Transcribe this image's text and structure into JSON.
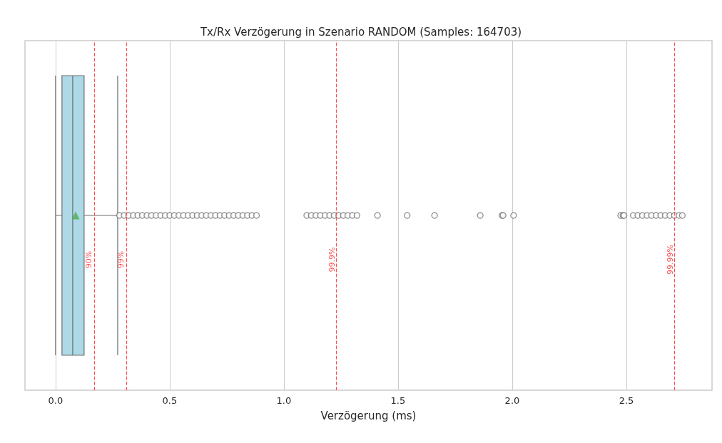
{
  "chart_data": {
    "type": "box",
    "title": "Tx/Rx Verzögerung in Szenario RANDOM (Samples: 164703)",
    "xlabel": "Verzögerung (ms)",
    "orientation": "horizontal",
    "categories": [
      null
    ],
    "xlim": [
      -0.134,
      2.875
    ],
    "xticks": [
      {
        "value": 0,
        "label": "0.0"
      },
      0.5,
      {
        "value": 1,
        "label": "1.0"
      },
      1.5,
      {
        "value": 2,
        "label": "2.0"
      },
      2.5
    ],
    "grid": "x",
    "series": [
      {
        "color": "#add8e6",
        "boxes": [
          {
            "low": 0.0,
            "q1": 0.028,
            "median": 0.075,
            "q3": 0.125,
            "high": 0.272,
            "mean": 0.088,
            "outliers": [
              0.28,
              0.3,
              0.32,
              0.34,
              0.36,
              0.38,
              0.4,
              0.42,
              0.44,
              0.46,
              0.48,
              0.5,
              0.52,
              0.54,
              0.56,
              0.58,
              0.6,
              0.62,
              0.64,
              0.66,
              0.68,
              0.7,
              0.72,
              0.74,
              0.76,
              0.78,
              0.8,
              0.82,
              0.84,
              0.86,
              0.88,
              1.1,
              1.12,
              1.14,
              1.16,
              1.18,
              1.2,
              1.22,
              1.24,
              1.26,
              1.28,
              1.3,
              1.32,
              1.41,
              1.54,
              1.66,
              1.86,
              1.955,
              1.96,
              2.006,
              2.475,
              2.485,
              2.49,
              2.53,
              2.55,
              2.57,
              2.59,
              2.61,
              2.63,
              2.65,
              2.67,
              2.69,
              2.71,
              2.73,
              2.745
            ]
          }
        ]
      }
    ],
    "ref_lines": [
      {
        "axis": "x",
        "value": 0.166,
        "color": "#ff4d4d",
        "line_style": "dashed"
      },
      {
        "axis": "x",
        "value": 0.306,
        "color": "#ff4d4d",
        "line_style": "dashed"
      },
      {
        "axis": "x",
        "value": 1.231,
        "color": "#ff4d4d",
        "line_style": "dashed"
      },
      {
        "axis": "x",
        "value": 2.7125,
        "color": "#ff4d4d",
        "line_style": "dashed"
      }
    ],
    "annotations": [
      {
        "text": "90%",
        "x": 0.166
      },
      {
        "text": "99%",
        "x": 0.306
      },
      {
        "text": "99.9%",
        "x": 1.231
      },
      {
        "text": "99.99%",
        "x": 2.7125
      }
    ]
  }
}
